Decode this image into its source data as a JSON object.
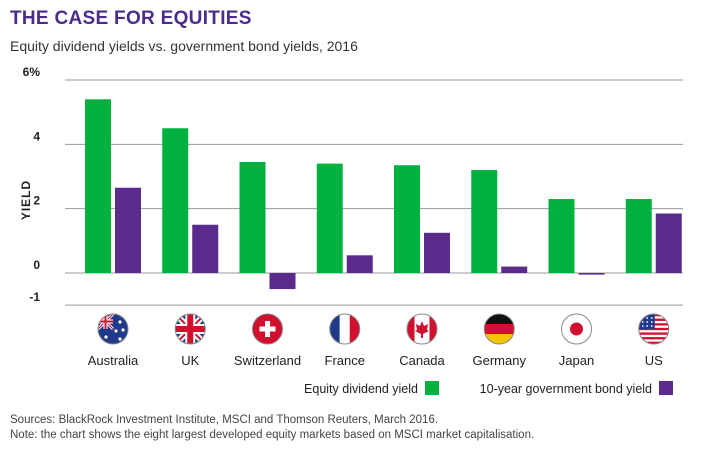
{
  "title": "THE CASE FOR EQUITIES",
  "subtitle": "Equity dividend yields vs. government bond yields, 2016",
  "chart_data": {
    "type": "bar",
    "title": "THE CASE FOR EQUITIES",
    "subtitle": "Equity dividend yields vs. government bond yields, 2016",
    "ylabel": "YIELD",
    "xlabel": "",
    "ylim": [
      -1,
      6
    ],
    "yticks": [
      {
        "value": 6,
        "label": "6%"
      },
      {
        "value": 4,
        "label": "4"
      },
      {
        "value": 2,
        "label": "2"
      },
      {
        "value": 0,
        "label": "0"
      },
      {
        "value": -1,
        "label": "-1"
      }
    ],
    "grid": true,
    "legend_position": "bottom-right",
    "categories": [
      "Australia",
      "UK",
      "Switzerland",
      "France",
      "Canada",
      "Germany",
      "Japan",
      "US"
    ],
    "flags": [
      "australia-flag-icon",
      "uk-flag-icon",
      "switzerland-flag-icon",
      "france-flag-icon",
      "canada-flag-icon",
      "germany-flag-icon",
      "japan-flag-icon",
      "us-flag-icon"
    ],
    "series": [
      {
        "name": "Equity dividend yield",
        "color": "#00b140",
        "values": [
          5.4,
          4.5,
          3.45,
          3.4,
          3.35,
          3.2,
          2.3,
          2.3
        ]
      },
      {
        "name": "10-year government bond yield",
        "color": "#5a2a8c",
        "values": [
          2.65,
          1.5,
          -0.5,
          0.55,
          1.25,
          0.2,
          -0.05,
          1.85
        ]
      }
    ]
  },
  "sources": "Sources: BlackRock Investment Institute, MSCI and Thomson Reuters, March 2016.",
  "note": "Note: the chart shows the eight largest developed equity markets based on MSCI market capitalisation."
}
